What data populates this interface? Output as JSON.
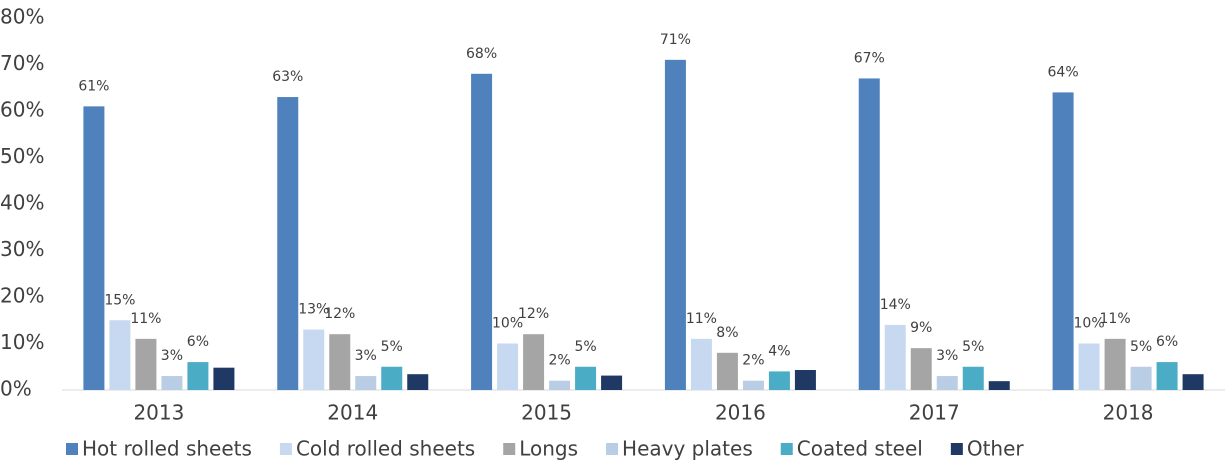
{
  "chart_data": {
    "type": "bar",
    "categories": [
      "2013",
      "2014",
      "2015",
      "2016",
      "2017",
      "2018"
    ],
    "series": [
      {
        "name": "Hot rolled sheets",
        "color": "#4f81bd",
        "values": [
          61,
          63,
          68,
          71,
          67,
          64
        ],
        "value_labels": [
          "61%",
          "63%",
          "68%",
          "71%",
          "67%",
          "64%"
        ]
      },
      {
        "name": "Cold rolled sheets",
        "color": "#c6d9f1",
        "values": [
          15,
          13,
          10,
          11,
          14,
          10
        ],
        "value_labels": [
          "15%",
          "13%",
          "10%",
          "11%",
          "14%",
          "10%"
        ]
      },
      {
        "name": "Longs",
        "color": "#a5a5a5",
        "values": [
          11,
          12,
          12,
          8,
          9,
          11
        ],
        "value_labels": [
          "11%",
          "12%",
          "12%",
          "8%",
          "9%",
          "11%"
        ]
      },
      {
        "name": "Heavy plates",
        "color": "#b9cde5",
        "values": [
          3,
          3,
          2,
          2,
          3,
          5
        ],
        "value_labels": [
          "3%",
          "3%",
          "2%",
          "2%",
          "3%",
          "5%"
        ]
      },
      {
        "name": "Coated steel",
        "color": "#4bacc6",
        "values": [
          6,
          5,
          5,
          4,
          5,
          6
        ],
        "value_labels": [
          "6%",
          "5%",
          "5%",
          "4%",
          "5%",
          "6%"
        ]
      },
      {
        "name": "Other",
        "color": "#1f3864",
        "values": [
          4.8,
          3.4,
          3.1,
          4.3,
          1.9,
          3.4
        ]
      }
    ],
    "ylim": [
      0,
      80
    ],
    "yticks": [
      {
        "value": 0,
        "label": "0%"
      },
      {
        "value": 10,
        "label": "10%"
      },
      {
        "value": 20,
        "label": "20%"
      },
      {
        "value": 30,
        "label": "30%"
      },
      {
        "value": 40,
        "label": "40%"
      },
      {
        "value": 50,
        "label": "50%"
      },
      {
        "value": 60,
        "label": "60%"
      },
      {
        "value": 70,
        "label": "70%"
      },
      {
        "value": 80,
        "label": "80%"
      }
    ],
    "legend": "bottom"
  }
}
